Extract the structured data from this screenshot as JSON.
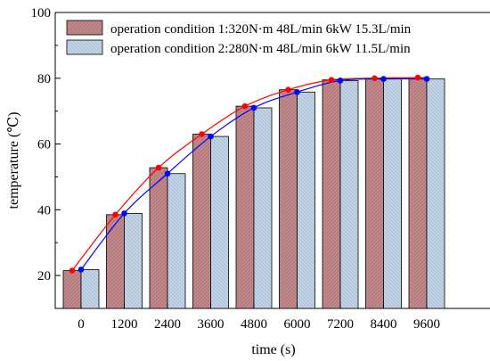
{
  "chart_data": {
    "type": "bar",
    "categories": [
      "0",
      "1200",
      "2400",
      "3600",
      "4800",
      "6000",
      "7200",
      "8400",
      "9600"
    ],
    "xlabel": "time (s)",
    "ylabel": "temperature (℃)",
    "ylim": [
      10,
      100
    ],
    "yticks": [
      20,
      40,
      60,
      80,
      100
    ],
    "grid": false,
    "legend_position": "top-right",
    "series": [
      {
        "name": "operation condition 1:320N·m 48L/min 6kW 15.3L/min",
        "values": [
          21.5,
          38.5,
          52.8,
          63.0,
          71.5,
          76.5,
          79.5,
          80.0,
          80.2
        ],
        "bar_color": "#c0888a",
        "hatch_color": "#a05c5e",
        "line_color": "#ff0000"
      },
      {
        "name": "operation condition 2:280N·m 48L/min 6kW 11.5L/min",
        "values": [
          21.8,
          38.9,
          51.0,
          62.3,
          71.0,
          75.8,
          79.3,
          79.8,
          79.8
        ],
        "bar_color": "#b8cce0",
        "hatch_color": "#8aa6c4",
        "line_color": "#0000ff"
      }
    ]
  }
}
